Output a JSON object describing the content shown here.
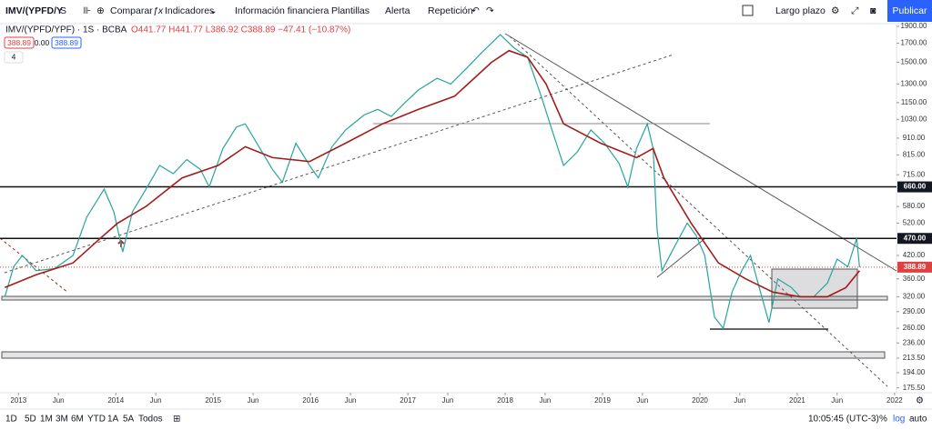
{
  "toolbar": {
    "symbol": "IMV/(YPFD/Y",
    "interval": "S",
    "compare": "Comparar",
    "indicators": "Indicadores",
    "financials": "Información financiera",
    "templates": "Plantillas",
    "alert": "Alerta",
    "replay": "Repetición",
    "layout": "Largo plazo",
    "publish": "Publicar"
  },
  "legend": {
    "title": "IMV/(YPFD/YPF) · 1S · BCBA",
    "ohlc": "O441.77 H441.77 L386.92 C388.89 −47.41 (−10.87%)",
    "bid": "388.89",
    "spread": "0.00",
    "ask": "388.89",
    "indicator_count": "4"
  },
  "chart_data": {
    "type": "line",
    "log_scale": true,
    "grid": false,
    "xlim": [
      2012.81,
      2022.02
    ],
    "ylim": [
      170,
      1935
    ],
    "xticks": [
      {
        "value": 2013,
        "label": "2013"
      },
      {
        "value": 2013.41,
        "label": "Jun"
      },
      {
        "value": 2014,
        "label": "2014"
      },
      {
        "value": 2014.41,
        "label": "Jun"
      },
      {
        "value": 2015,
        "label": "2015"
      },
      {
        "value": 2015.41,
        "label": "Jun"
      },
      {
        "value": 2016,
        "label": "2016"
      },
      {
        "value": 2016.41,
        "label": "Jun"
      },
      {
        "value": 2017,
        "label": "2017"
      },
      {
        "value": 2017.41,
        "label": "Jun"
      },
      {
        "value": 2018,
        "label": "2018"
      },
      {
        "value": 2018.41,
        "label": "Jun"
      },
      {
        "value": 2019,
        "label": "2019"
      },
      {
        "value": 2019.41,
        "label": "Jun"
      },
      {
        "value": 2020,
        "label": "2020"
      },
      {
        "value": 2020.41,
        "label": "Jun"
      },
      {
        "value": 2021,
        "label": "2021"
      },
      {
        "value": 2021.41,
        "label": "Jun"
      },
      {
        "value": 2022,
        "label": "2022"
      }
    ],
    "yticks": [
      {
        "value": 1900,
        "label": "1900.00"
      },
      {
        "value": 1700,
        "label": "1700.00"
      },
      {
        "value": 1500,
        "label": "1500.00"
      },
      {
        "value": 1300,
        "label": "1300.00"
      },
      {
        "value": 1150,
        "label": "1150.00"
      },
      {
        "value": 1030,
        "label": "1030.00"
      },
      {
        "value": 910,
        "label": "910.00"
      },
      {
        "value": 815,
        "label": "815.00"
      },
      {
        "value": 715,
        "label": "715.00"
      },
      {
        "value": 580,
        "label": "580.00"
      },
      {
        "value": 520,
        "label": "520.00"
      },
      {
        "value": 420,
        "label": "420.00"
      },
      {
        "value": 360,
        "label": "360.00"
      },
      {
        "value": 320,
        "label": "320.00"
      },
      {
        "value": 290,
        "label": "290.00"
      },
      {
        "value": 260,
        "label": "260.00"
      },
      {
        "value": 236,
        "label": "236.00"
      },
      {
        "value": 213.5,
        "label": "213.50"
      },
      {
        "value": 194,
        "label": "194.00"
      },
      {
        "value": 175.5,
        "label": "175.50"
      }
    ],
    "price_lines": [
      {
        "value": 660,
        "label": "660.00"
      },
      {
        "value": 470,
        "label": "470.00"
      }
    ],
    "last_price": {
      "value": 388.89,
      "label": "388.89"
    },
    "series": [
      {
        "color": "#26a69a",
        "x": [
          2012.86,
          2012.95,
          2013.04,
          2013.18,
          2013.37,
          2013.56,
          2013.7,
          2013.88,
          2013.98,
          2014.07,
          2014.17,
          2014.31,
          2014.45,
          2014.59,
          2014.73,
          2014.87,
          2014.96,
          2015.1,
          2015.24,
          2015.33,
          2015.47,
          2015.61,
          2015.71,
          2015.85,
          2015.99,
          2016.08,
          2016.22,
          2016.36,
          2016.55,
          2016.69,
          2016.83,
          2016.97,
          2017.11,
          2017.3,
          2017.44,
          2017.58,
          2017.76,
          2017.95,
          2018.09,
          2018.23,
          2018.37,
          2018.46,
          2018.6,
          2018.74,
          2018.88,
          2019.02,
          2019.17,
          2019.26,
          2019.35,
          2019.46,
          2019.52,
          2019.56,
          2019.61,
          2019.73,
          2019.87,
          2019.96,
          2020.05,
          2020.15,
          2020.24,
          2020.33,
          2020.43,
          2020.52,
          2020.61,
          2020.71,
          2020.8,
          2020.94,
          2021.03,
          2021.17,
          2021.31,
          2021.41,
          2021.52,
          2021.61,
          2021.64
        ],
        "values": [
          320,
          390,
          420,
          380,
          385,
          420,
          540,
          650,
          560,
          430,
          560,
          650,
          760,
          720,
          790,
          740,
          660,
          850,
          980,
          1000,
          860,
          740,
          680,
          880,
          760,
          700,
          860,
          960,
          1060,
          1100,
          1050,
          1150,
          1250,
          1350,
          1300,
          1420,
          1600,
          1800,
          1650,
          1550,
          1200,
          1000,
          760,
          830,
          960,
          880,
          770,
          660,
          850,
          1000,
          850,
          500,
          380,
          440,
          520,
          480,
          420,
          280,
          260,
          330,
          380,
          420,
          340,
          270,
          360,
          340,
          320,
          320,
          350,
          410,
          390,
          470,
          388.89
        ]
      },
      {
        "color": "#a51c1c",
        "x": [
          2012.86,
          2013.18,
          2013.56,
          2013.84,
          2014.02,
          2014.31,
          2014.68,
          2015.05,
          2015.33,
          2015.61,
          2015.99,
          2016.36,
          2016.74,
          2017.11,
          2017.48,
          2017.86,
          2018.04,
          2018.23,
          2018.42,
          2018.6,
          2018.98,
          2019.35,
          2019.52,
          2019.63,
          2019.91,
          2020.19,
          2020.47,
          2020.75,
          2021.03,
          2021.31,
          2021.5,
          2021.64
        ],
        "values": [
          340,
          370,
          400,
          470,
          520,
          580,
          700,
          760,
          860,
          800,
          780,
          880,
          1000,
          1100,
          1200,
          1500,
          1620,
          1550,
          1300,
          1000,
          880,
          800,
          850,
          700,
          520,
          400,
          360,
          330,
          320,
          320,
          340,
          380
        ]
      }
    ]
  },
  "timeframes": [
    "1D",
    "5D",
    "1M",
    "3M",
    "6M",
    "YTD",
    "1A",
    "5A",
    "Todos"
  ],
  "status": {
    "time": "10:05:45 (UTC-3)",
    "percent": "%",
    "log": "log",
    "auto": "auto"
  }
}
